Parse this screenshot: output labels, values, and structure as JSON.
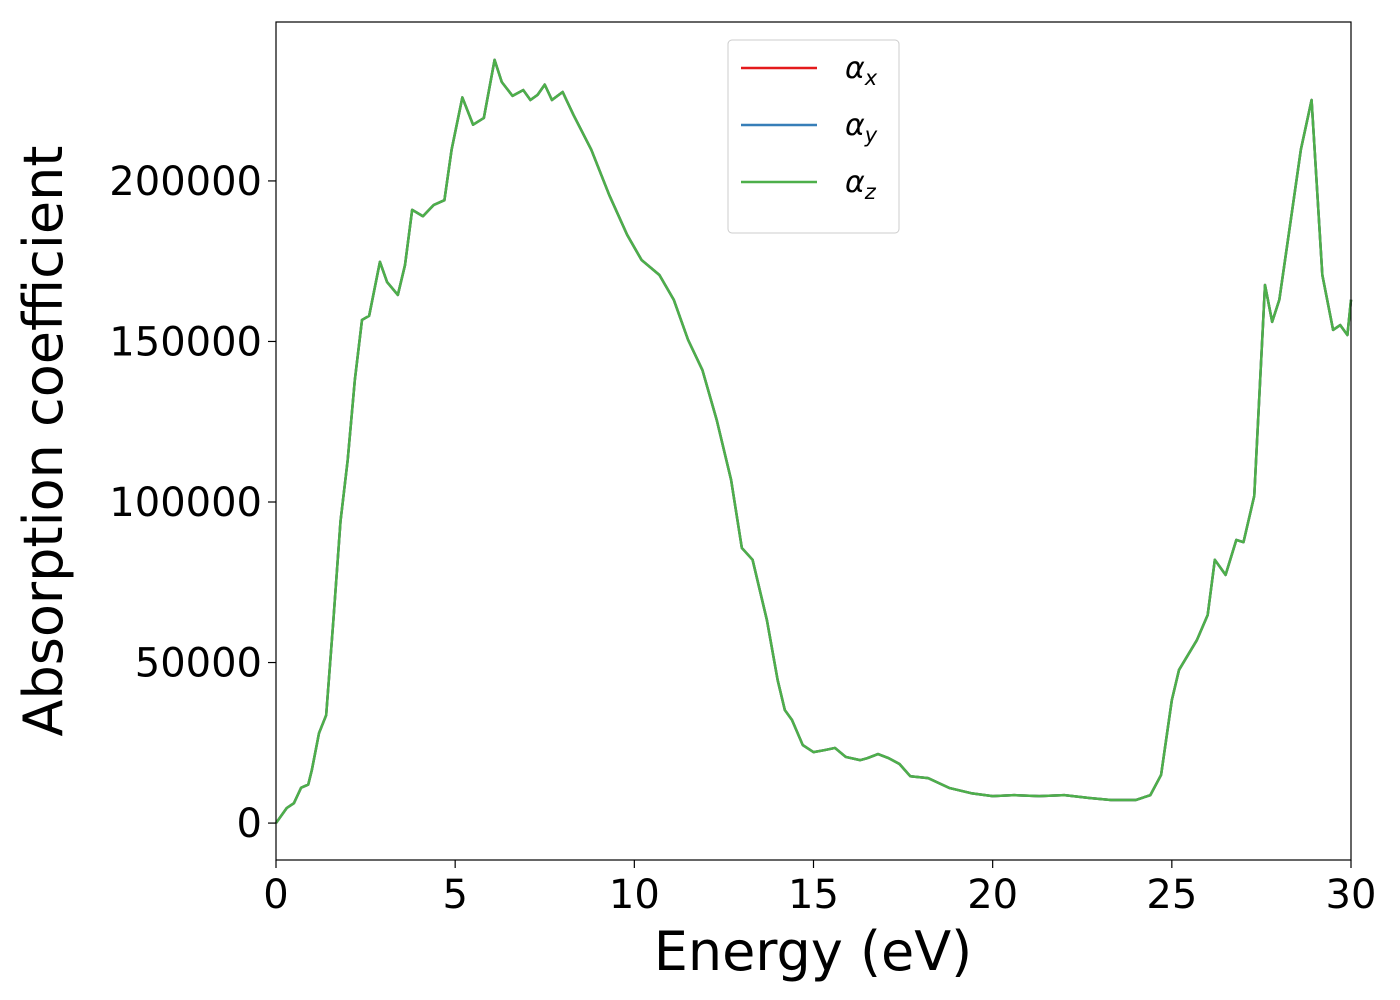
{
  "chart_data": {
    "type": "line",
    "xlabel": "Energy (eV)",
    "ylabel": "Absorption coefficient",
    "x": [
      0,
      0.3,
      0.5,
      0.7,
      0.9,
      1.0,
      1.2,
      1.4,
      1.6,
      1.8,
      2.0,
      2.2,
      2.4,
      2.6,
      2.9,
      3.1,
      3.4,
      3.6,
      3.8,
      4.1,
      4.4,
      4.7,
      4.9,
      5.2,
      5.5,
      5.8,
      6.1,
      6.3,
      6.6,
      6.9,
      7.1,
      7.3,
      7.5,
      7.7,
      8.0,
      8.3,
      8.8,
      9.3,
      9.8,
      10.2,
      10.7,
      11.1,
      11.5,
      11.9,
      12.3,
      12.7,
      13.0,
      13.3,
      13.7,
      14.0,
      14.2,
      14.4,
      14.7,
      15.0,
      15.3,
      15.6,
      15.9,
      16.3,
      16.5,
      16.8,
      17.1,
      17.4,
      17.7,
      18.2,
      18.8,
      19.4,
      20.0,
      20.6,
      21.3,
      22.0,
      22.7,
      23.3,
      24.0,
      24.4,
      24.7,
      25.0,
      25.2,
      25.7,
      26.0,
      26.2,
      26.5,
      26.8,
      27.0,
      27.3,
      27.6,
      27.8,
      28.0,
      28.3,
      28.6,
      28.9,
      29.2,
      29.5,
      29.7,
      29.9,
      30.0
    ],
    "series": [
      {
        "name": "αx",
        "color": "#e41a1c",
        "values": [
          0,
          4700,
          6200,
          11000,
          12000,
          16500,
          28000,
          33600,
          63000,
          94000,
          113000,
          138000,
          156700,
          158000,
          174800,
          168500,
          164500,
          173800,
          191000,
          189000,
          192500,
          194000,
          209700,
          226000,
          217500,
          219600,
          237700,
          230800,
          226500,
          228300,
          225200,
          226800,
          230000,
          225200,
          227700,
          220600,
          209700,
          195600,
          183200,
          175400,
          170700,
          163000,
          150500,
          141100,
          125500,
          106900,
          85700,
          82000,
          63200,
          44500,
          35200,
          32100,
          24300,
          22100,
          22700,
          23400,
          20600,
          19600,
          20200,
          21500,
          20200,
          18400,
          14600,
          14000,
          10900,
          9300,
          8400,
          8700,
          8400,
          8700,
          7800,
          7200,
          7200,
          8700,
          15000,
          38300,
          47700,
          57000,
          64800,
          82000,
          77300,
          88200,
          87500,
          101900,
          167600,
          156100,
          163000,
          186300,
          209700,
          225200,
          170700,
          153600,
          155100,
          152000,
          163000
        ]
      },
      {
        "name": "αy",
        "color": "#377eb8",
        "values": [
          0,
          4700,
          6200,
          11000,
          12000,
          16500,
          28000,
          33600,
          63000,
          94000,
          113000,
          138000,
          156700,
          158000,
          174800,
          168500,
          164500,
          173800,
          191000,
          189000,
          192500,
          194000,
          209700,
          226000,
          217500,
          219600,
          237700,
          230800,
          226500,
          228300,
          225200,
          226800,
          230000,
          225200,
          227700,
          220600,
          209700,
          195600,
          183200,
          175400,
          170700,
          163000,
          150500,
          141100,
          125500,
          106900,
          85700,
          82000,
          63200,
          44500,
          35200,
          32100,
          24300,
          22100,
          22700,
          23400,
          20600,
          19600,
          20200,
          21500,
          20200,
          18400,
          14600,
          14000,
          10900,
          9300,
          8400,
          8700,
          8400,
          8700,
          7800,
          7200,
          7200,
          8700,
          15000,
          38300,
          47700,
          57000,
          64800,
          82000,
          77300,
          88200,
          87500,
          101900,
          167600,
          156100,
          163000,
          186300,
          209700,
          225200,
          170700,
          153600,
          155100,
          152000,
          163000
        ]
      },
      {
        "name": "αz",
        "color": "#4daf4a",
        "values": [
          0,
          4700,
          6200,
          11000,
          12000,
          16500,
          28000,
          33600,
          63000,
          94000,
          113000,
          138000,
          156700,
          158000,
          174800,
          168500,
          164500,
          173800,
          191000,
          189000,
          192500,
          194000,
          209700,
          226000,
          217500,
          219600,
          237700,
          230800,
          226500,
          228300,
          225200,
          226800,
          230000,
          225200,
          227700,
          220600,
          209700,
          195600,
          183200,
          175400,
          170700,
          163000,
          150500,
          141100,
          125500,
          106900,
          85700,
          82000,
          63200,
          44500,
          35200,
          32100,
          24300,
          22100,
          22700,
          23400,
          20600,
          19600,
          20200,
          21500,
          20200,
          18400,
          14600,
          14000,
          10900,
          9300,
          8400,
          8700,
          8400,
          8700,
          7800,
          7200,
          7200,
          8700,
          15000,
          38300,
          47700,
          57000,
          64800,
          82000,
          77300,
          88200,
          87500,
          101900,
          167600,
          156100,
          163000,
          186300,
          209700,
          225200,
          170700,
          153600,
          155100,
          152000,
          163000
        ]
      }
    ],
    "xlim": [
      0,
      30
    ],
    "xticks": [
      0,
      5,
      10,
      15,
      20,
      25,
      30
    ],
    "ylim": [
      -11500,
      249500
    ],
    "yticks": [
      0,
      50000,
      100000,
      150000,
      200000
    ],
    "legend": "upper center",
    "grid": false
  }
}
